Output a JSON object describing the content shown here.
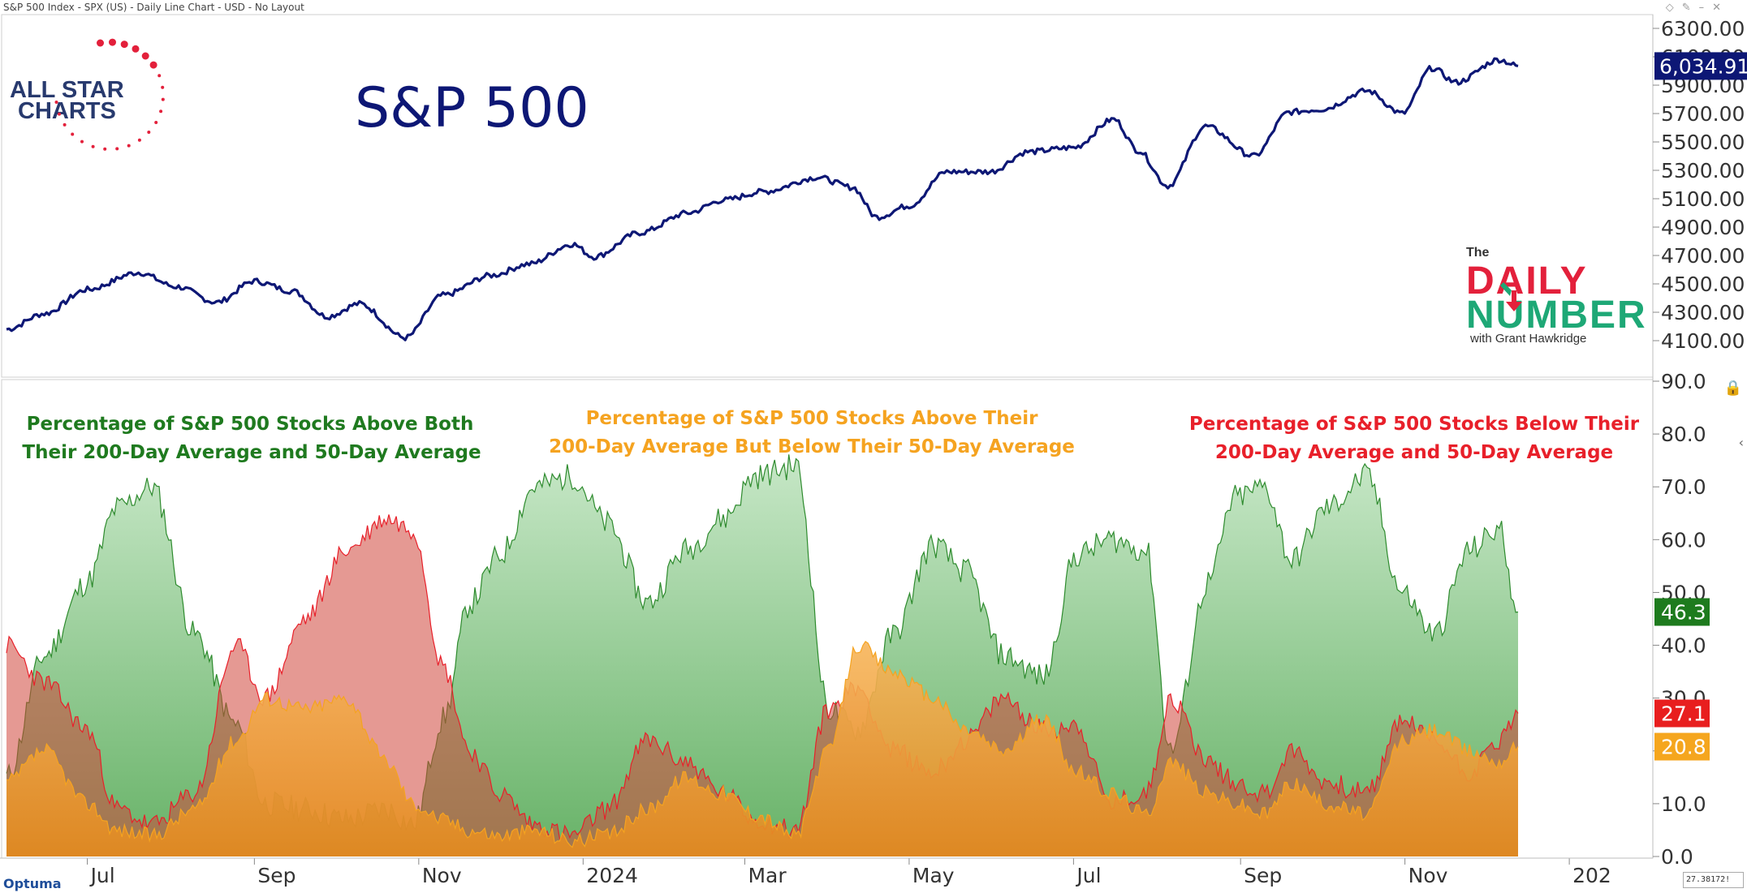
{
  "header": {
    "description": "S&P 500 Index - SPX (US) - Daily Line Chart - USD - No Layout",
    "icons": [
      "diamond-icon",
      "pin-icon",
      "minimize-icon",
      "close-icon"
    ]
  },
  "logos": {
    "allstar_line1": "ALL STAR",
    "allstar_line2": "CHARTS",
    "daily_the": "The",
    "daily_word1": "DAILY",
    "daily_word2": "NUMBER",
    "daily_byline": "with Grant Hawkridge"
  },
  "footer": {
    "brand": "Optuma",
    "coordinate": "27.38172!"
  },
  "colors": {
    "price_line": "#0d1775",
    "price_badge": "#0d1775",
    "green": "#2e8b2e",
    "red": "#e8202a",
    "orange": "#f5a320",
    "green_badge": "#1e7b1e",
    "red_badge": "#e81e1e",
    "orange_badge": "#f5a61e"
  },
  "chart_data": [
    {
      "type": "line",
      "title": "S&P 500",
      "series": [
        {
          "name": "S&P 500",
          "x": [
            "2023-06-01",
            "2023-06-15",
            "2023-07-01",
            "2023-07-20",
            "2023-08-03",
            "2023-08-18",
            "2023-09-01",
            "2023-09-15",
            "2023-09-28",
            "2023-10-10",
            "2023-10-27",
            "2023-11-10",
            "2023-11-28",
            "2023-12-12",
            "2023-12-28",
            "2024-01-05",
            "2024-01-22",
            "2024-02-09",
            "2024-02-22",
            "2024-03-08",
            "2024-03-28",
            "2024-04-10",
            "2024-04-19",
            "2024-05-01",
            "2024-05-15",
            "2024-05-31",
            "2024-06-14",
            "2024-07-01",
            "2024-07-16",
            "2024-07-25",
            "2024-08-05",
            "2024-08-19",
            "2024-09-06",
            "2024-09-19",
            "2024-10-01",
            "2024-10-18",
            "2024-10-31",
            "2024-11-11",
            "2024-11-20",
            "2024-12-06",
            "2024-12-13"
          ],
          "values": [
            4180,
            4290,
            4460,
            4580,
            4480,
            4370,
            4520,
            4450,
            4270,
            4360,
            4120,
            4420,
            4560,
            4640,
            4780,
            4690,
            4860,
            5000,
            5090,
            5150,
            5250,
            5180,
            4970,
            5050,
            5290,
            5290,
            5430,
            5460,
            5660,
            5440,
            5190,
            5610,
            5400,
            5710,
            5730,
            5860,
            5700,
            6020,
            5920,
            6080,
            6034.91
          ]
        }
      ],
      "ylim": [
        3900,
        6300
      ],
      "yticks": [
        "4100.00",
        "4300.00",
        "4500.00",
        "4700.00",
        "4900.00",
        "5100.00",
        "5300.00",
        "5500.00",
        "5700.00",
        "5900.00",
        "6100.00",
        "6300.00"
      ],
      "last_value_label": "6,034.91"
    },
    {
      "type": "area",
      "xticks": [
        "Jul",
        "Sep",
        "Nov",
        "2024",
        "Mar",
        "May",
        "Jul",
        "Sep",
        "Nov",
        "202"
      ],
      "xtick_dates": [
        "2023-07-01",
        "2023-09-01",
        "2023-11-01",
        "2024-01-01",
        "2024-03-01",
        "2024-05-01",
        "2024-07-01",
        "2024-09-01",
        "2024-11-01",
        "2025-01-01"
      ],
      "x_start": "2023-06-01",
      "x_end": "2025-02-01",
      "ylim": [
        0,
        90
      ],
      "yticks": [
        "0.0",
        "10.0",
        "20.0",
        "30.0",
        "40.0",
        "50.0",
        "60.0",
        "70.0",
        "80.0",
        "90.0"
      ],
      "annotations": {
        "green": [
          "Percentage of S&P 500 Stocks Above Both",
          "Their 200-Day Average and 50-Day Average"
        ],
        "orange": [
          "Percentage of S&P 500 Stocks Above Their",
          "200-Day Average But Below Their 50-Day Average"
        ],
        "red": [
          "Percentage of S&P 500 Stocks Below Their",
          "200-Day Average and 50-Day Average"
        ]
      },
      "series": [
        {
          "name": "Above 200-Day and 50-Day",
          "x": [
            "2023-06-01",
            "2023-06-15",
            "2023-07-01",
            "2023-07-12",
            "2023-07-25",
            "2023-08-10",
            "2023-08-25",
            "2023-09-05",
            "2023-09-20",
            "2023-10-05",
            "2023-10-20",
            "2023-10-30",
            "2023-11-10",
            "2023-11-20",
            "2023-12-01",
            "2023-12-14",
            "2023-12-28",
            "2024-01-10",
            "2024-01-25",
            "2024-02-08",
            "2024-02-22",
            "2024-03-05",
            "2024-03-20",
            "2024-04-01",
            "2024-04-12",
            "2024-04-25",
            "2024-05-10",
            "2024-05-22",
            "2024-06-05",
            "2024-06-20",
            "2024-07-02",
            "2024-07-15",
            "2024-07-28",
            "2024-08-06",
            "2024-08-20",
            "2024-08-30",
            "2024-09-10",
            "2024-09-20",
            "2024-10-03",
            "2024-10-18",
            "2024-10-31",
            "2024-11-12",
            "2024-11-25",
            "2024-12-06",
            "2024-12-13"
          ],
          "values": [
            15,
            38,
            52,
            66,
            70,
            42,
            25,
            10,
            9,
            7,
            9,
            6,
            26,
            48,
            57,
            70,
            72,
            63,
            48,
            58,
            64,
            72,
            74,
            28,
            24,
            42,
            59,
            54,
            38,
            34,
            57,
            60,
            58,
            20,
            52,
            68,
            70,
            56,
            66,
            72,
            50,
            42,
            58,
            62,
            46.3
          ]
        },
        {
          "name": "Below 200-Day and 50-Day",
          "x": [
            "2023-06-01",
            "2023-06-15",
            "2023-07-01",
            "2023-07-12",
            "2023-07-25",
            "2023-08-10",
            "2023-08-25",
            "2023-09-05",
            "2023-09-20",
            "2023-10-05",
            "2023-10-20",
            "2023-10-30",
            "2023-11-10",
            "2023-11-20",
            "2023-12-01",
            "2023-12-14",
            "2023-12-28",
            "2024-01-10",
            "2024-01-25",
            "2024-02-08",
            "2024-02-22",
            "2024-03-05",
            "2024-03-20",
            "2024-04-01",
            "2024-04-12",
            "2024-04-25",
            "2024-05-10",
            "2024-05-22",
            "2024-06-05",
            "2024-06-20",
            "2024-07-02",
            "2024-07-15",
            "2024-07-28",
            "2024-08-06",
            "2024-08-20",
            "2024-08-30",
            "2024-09-10",
            "2024-09-20",
            "2024-10-03",
            "2024-10-18",
            "2024-10-31",
            "2024-11-12",
            "2024-11-25",
            "2024-12-06",
            "2024-12-13"
          ],
          "values": [
            40,
            33,
            24,
            9,
            6,
            12,
            40,
            30,
            45,
            58,
            64,
            62,
            36,
            20,
            12,
            6,
            4,
            9,
            22,
            18,
            12,
            7,
            5,
            28,
            32,
            20,
            16,
            22,
            30,
            24,
            25,
            10,
            12,
            30,
            18,
            14,
            12,
            20,
            14,
            12,
            26,
            22,
            16,
            22,
            27.1
          ]
        },
        {
          "name": "Above 200-Day Below 50-Day",
          "x": [
            "2023-06-01",
            "2023-06-15",
            "2023-07-01",
            "2023-07-12",
            "2023-07-25",
            "2023-08-10",
            "2023-08-25",
            "2023-09-05",
            "2023-09-20",
            "2023-10-05",
            "2023-10-20",
            "2023-10-30",
            "2023-11-10",
            "2023-11-20",
            "2023-12-01",
            "2023-12-14",
            "2023-12-28",
            "2024-01-10",
            "2024-01-25",
            "2024-02-08",
            "2024-02-22",
            "2024-03-05",
            "2024-03-20",
            "2024-04-01",
            "2024-04-12",
            "2024-04-25",
            "2024-05-10",
            "2024-05-22",
            "2024-06-05",
            "2024-06-20",
            "2024-07-02",
            "2024-07-15",
            "2024-07-28",
            "2024-08-06",
            "2024-08-20",
            "2024-08-30",
            "2024-09-10",
            "2024-09-20",
            "2024-10-03",
            "2024-10-18",
            "2024-10-31",
            "2024-11-12",
            "2024-11-25",
            "2024-12-06",
            "2024-12-13"
          ],
          "values": [
            14,
            20,
            10,
            5,
            4,
            9,
            22,
            30,
            28,
            30,
            18,
            10,
            7,
            5,
            4,
            5,
            3,
            4,
            9,
            15,
            12,
            8,
            4,
            20,
            40,
            35,
            30,
            24,
            20,
            26,
            16,
            12,
            8,
            18,
            12,
            10,
            8,
            14,
            10,
            8,
            22,
            24,
            20,
            18,
            20.8
          ]
        }
      ],
      "last_value_labels": [
        "46.3",
        "27.1",
        "20.8"
      ]
    }
  ]
}
